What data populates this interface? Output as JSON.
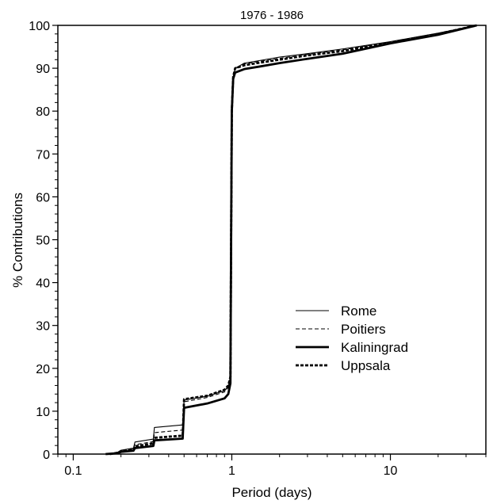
{
  "chart_data": {
    "type": "line",
    "title": "1976 - 1986",
    "xlabel": "Period (days)",
    "ylabel": "% Contributions",
    "xscale": "log",
    "xlim": [
      0.08,
      40
    ],
    "ylim": [
      0,
      100
    ],
    "x_ticks": [
      0.1,
      1,
      10
    ],
    "x_tick_labels": [
      "0.1",
      "1",
      "10"
    ],
    "y_ticks": [
      0,
      10,
      20,
      30,
      40,
      50,
      60,
      70,
      80,
      90,
      100
    ],
    "y_tick_labels": [
      "0",
      "10",
      "20",
      "30",
      "40",
      "50",
      "60",
      "70",
      "80",
      "90",
      "100"
    ],
    "grid": false,
    "legend_position": "lower-right",
    "series": [
      {
        "name": "Rome",
        "line_style": "thin-solid",
        "points": [
          [
            0.17,
            0
          ],
          [
            0.19,
            0.4
          ],
          [
            0.2,
            0.9
          ],
          [
            0.24,
            1.4
          ],
          [
            0.245,
            2.8
          ],
          [
            0.32,
            3.5
          ],
          [
            0.325,
            6.2
          ],
          [
            0.49,
            6.8
          ],
          [
            0.5,
            12.6
          ],
          [
            0.7,
            13.5
          ],
          [
            0.9,
            14.8
          ],
          [
            0.95,
            15.8
          ],
          [
            0.98,
            18
          ],
          [
            0.99,
            50
          ],
          [
            1.0,
            80
          ],
          [
            1.02,
            88
          ],
          [
            1.05,
            90
          ],
          [
            1.2,
            91.2
          ],
          [
            1.5,
            91.8
          ],
          [
            2,
            92.6
          ],
          [
            3,
            93.4
          ],
          [
            5,
            94.5
          ],
          [
            10,
            96.2
          ],
          [
            20,
            98.2
          ],
          [
            35,
            100
          ]
        ]
      },
      {
        "name": "Poitiers",
        "line_style": "thin-dashed",
        "points": [
          [
            0.17,
            0
          ],
          [
            0.19,
            0.3
          ],
          [
            0.2,
            0.7
          ],
          [
            0.24,
            1.2
          ],
          [
            0.245,
            2.2
          ],
          [
            0.32,
            2.9
          ],
          [
            0.325,
            5
          ],
          [
            0.49,
            5.6
          ],
          [
            0.5,
            12.2
          ],
          [
            0.7,
            13.2
          ],
          [
            0.9,
            14.5
          ],
          [
            0.95,
            15.5
          ],
          [
            0.98,
            18
          ],
          [
            0.99,
            50
          ],
          [
            1.0,
            80
          ],
          [
            1.02,
            88
          ],
          [
            1.05,
            89.8
          ],
          [
            1.2,
            91
          ],
          [
            1.5,
            91.6
          ],
          [
            2,
            92.3
          ],
          [
            3,
            93.2
          ],
          [
            5,
            94.3
          ],
          [
            10,
            96.1
          ],
          [
            20,
            98.1
          ],
          [
            35,
            100
          ]
        ]
      },
      {
        "name": "Kaliningrad",
        "line_style": "thick-solid",
        "points": [
          [
            0.16,
            0
          ],
          [
            0.19,
            0.2
          ],
          [
            0.2,
            0.5
          ],
          [
            0.24,
            0.8
          ],
          [
            0.245,
            1.4
          ],
          [
            0.32,
            1.9
          ],
          [
            0.325,
            3.2
          ],
          [
            0.49,
            3.6
          ],
          [
            0.5,
            10.8
          ],
          [
            0.7,
            11.8
          ],
          [
            0.9,
            13
          ],
          [
            0.95,
            14
          ],
          [
            0.98,
            16.5
          ],
          [
            0.99,
            50
          ],
          [
            1.0,
            80
          ],
          [
            1.02,
            87.5
          ],
          [
            1.05,
            89
          ],
          [
            1.2,
            89.8
          ],
          [
            1.5,
            90.4
          ],
          [
            2,
            91.2
          ],
          [
            3,
            92.2
          ],
          [
            5,
            93.4
          ],
          [
            10,
            95.8
          ],
          [
            20,
            97.8
          ],
          [
            35,
            100
          ]
        ]
      },
      {
        "name": "Uppsala",
        "line_style": "thick-dotted",
        "points": [
          [
            0.17,
            0
          ],
          [
            0.19,
            0.3
          ],
          [
            0.2,
            0.6
          ],
          [
            0.24,
            1
          ],
          [
            0.245,
            1.8
          ],
          [
            0.32,
            2.5
          ],
          [
            0.325,
            3.8
          ],
          [
            0.49,
            4.3
          ],
          [
            0.5,
            12.8
          ],
          [
            0.7,
            13.6
          ],
          [
            0.9,
            15
          ],
          [
            0.95,
            16
          ],
          [
            0.98,
            18
          ],
          [
            0.99,
            50
          ],
          [
            1.0,
            80
          ],
          [
            1.02,
            88
          ],
          [
            1.05,
            90
          ],
          [
            1.2,
            90.7
          ],
          [
            1.5,
            91.3
          ],
          [
            2,
            92
          ],
          [
            3,
            93
          ],
          [
            5,
            94
          ],
          [
            10,
            96
          ],
          [
            20,
            98
          ],
          [
            35,
            100
          ]
        ]
      }
    ]
  }
}
